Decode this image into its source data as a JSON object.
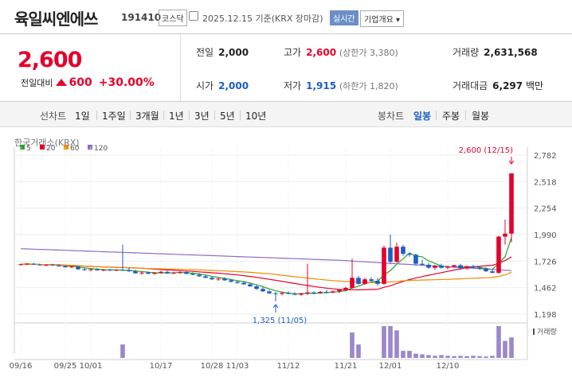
{
  "header": {
    "name": "육일씨엔에쓰",
    "code": "191410",
    "market": "코스닥",
    "date_text": "2025.12.15 기준(KRX 장마감)",
    "realtime": "실시간",
    "company_info": "기업개요 ▾"
  },
  "summary": {
    "price": "2,600",
    "change_label": "전일대비",
    "change_value": "600",
    "change_pct": "+30.00%",
    "prev_label": "전일",
    "prev_value": "2,000",
    "open_label": "시가",
    "open_value": "2,000",
    "high_label": "고가",
    "high_value": "2,600",
    "high_sub": "(상한가 3,380)",
    "low_label": "저가",
    "low_value": "1,915",
    "low_sub": "(하한가 1,820)",
    "volume_label": "거래량",
    "volume_value": "2,631,568",
    "amount_label": "거래대금",
    "amount_value": "6,297",
    "amount_unit": "백만"
  },
  "toolbar": {
    "line_chart": "선차트",
    "periods": [
      "1일",
      "1주일",
      "3개월",
      "1년",
      "3년",
      "5년",
      "10년"
    ],
    "candle": "봉차트",
    "candle_periods": [
      "일봉",
      "주봉",
      "월봉"
    ],
    "selected": "일봉"
  },
  "colors": {
    "up": "#e4002b",
    "down": "#1a5fc6",
    "ma5": "#2ca02c",
    "ma20": "#e4002b",
    "ma60": "#f08c00",
    "ma120": "#8e6bc6",
    "volume": "#9b87c9"
  },
  "chart_data": {
    "type": "candlestick",
    "source": "한국거래소(KRX)",
    "legend": [
      "5",
      "20",
      "60",
      "120"
    ],
    "y_ticks": [
      2782,
      2518,
      2254,
      1990,
      1726,
      1462,
      1198
    ],
    "ylim": [
      1198,
      2782
    ],
    "x_ticks": [
      "09/16",
      "09/25",
      "10/01",
      "10/17",
      "10/28",
      "11/03",
      "11/12",
      "11/21",
      "12/01",
      "12/10"
    ],
    "max_label": "2,600 (12/15)",
    "min_label": "1,325 (11/05)",
    "volume_label": "거래량",
    "candles": [
      [
        1690,
        1700,
        1680,
        1695
      ],
      [
        1695,
        1705,
        1690,
        1700
      ],
      [
        1700,
        1710,
        1688,
        1692
      ],
      [
        1692,
        1700,
        1680,
        1685
      ],
      [
        1685,
        1695,
        1675,
        1690
      ],
      [
        1690,
        1700,
        1680,
        1685
      ],
      [
        1685,
        1695,
        1670,
        1675
      ],
      [
        1675,
        1685,
        1660,
        1665
      ],
      [
        1665,
        1680,
        1655,
        1672
      ],
      [
        1672,
        1680,
        1640,
        1645
      ],
      [
        1645,
        1660,
        1630,
        1638
      ],
      [
        1638,
        1650,
        1625,
        1645
      ],
      [
        1645,
        1655,
        1630,
        1635
      ],
      [
        1635,
        1648,
        1625,
        1640
      ],
      [
        1640,
        1650,
        1628,
        1632
      ],
      [
        1632,
        1645,
        1625,
        1640
      ],
      [
        1640,
        1890,
        1630,
        1635
      ],
      [
        1635,
        1660,
        1620,
        1625
      ],
      [
        1625,
        1640,
        1600,
        1605
      ],
      [
        1605,
        1620,
        1590,
        1612
      ],
      [
        1612,
        1625,
        1595,
        1600
      ],
      [
        1600,
        1615,
        1590,
        1610
      ],
      [
        1610,
        1630,
        1600,
        1620
      ],
      [
        1620,
        1630,
        1598,
        1605
      ],
      [
        1605,
        1620,
        1595,
        1612
      ],
      [
        1612,
        1625,
        1600,
        1618
      ],
      [
        1618,
        1630,
        1595,
        1600
      ],
      [
        1600,
        1615,
        1585,
        1590
      ],
      [
        1590,
        1605,
        1570,
        1575
      ],
      [
        1575,
        1590,
        1555,
        1560
      ],
      [
        1560,
        1575,
        1540,
        1545
      ],
      [
        1545,
        1560,
        1530,
        1552
      ],
      [
        1552,
        1565,
        1530,
        1535
      ],
      [
        1535,
        1550,
        1515,
        1520
      ],
      [
        1520,
        1535,
        1500,
        1510
      ],
      [
        1510,
        1525,
        1490,
        1495
      ],
      [
        1495,
        1510,
        1470,
        1475
      ],
      [
        1475,
        1490,
        1440,
        1450
      ],
      [
        1450,
        1465,
        1420,
        1425
      ],
      [
        1425,
        1440,
        1400,
        1405
      ],
      [
        1405,
        1420,
        1325,
        1400
      ],
      [
        1400,
        1415,
        1385,
        1410
      ],
      [
        1410,
        1425,
        1395,
        1400
      ],
      [
        1400,
        1415,
        1385,
        1392
      ],
      [
        1392,
        1410,
        1380,
        1405
      ],
      [
        1405,
        1700,
        1390,
        1415
      ],
      [
        1415,
        1425,
        1395,
        1410
      ],
      [
        1410,
        1430,
        1400,
        1420
      ],
      [
        1420,
        1440,
        1405,
        1415
      ],
      [
        1415,
        1435,
        1405,
        1425
      ],
      [
        1425,
        1445,
        1410,
        1440
      ],
      [
        1440,
        1470,
        1430,
        1460
      ],
      [
        1460,
        1750,
        1450,
        1560
      ],
      [
        1560,
        1580,
        1490,
        1500
      ],
      [
        1500,
        1560,
        1490,
        1545
      ],
      [
        1545,
        1565,
        1520,
        1530
      ],
      [
        1530,
        1560,
        1480,
        1500
      ],
      [
        1500,
        1880,
        1490,
        1860
      ],
      [
        1860,
        1990,
        1700,
        1720
      ],
      [
        1720,
        1910,
        1710,
        1870
      ],
      [
        1870,
        1890,
        1780,
        1800
      ],
      [
        1800,
        1810,
        1770,
        1790
      ],
      [
        1790,
        1800,
        1680,
        1700
      ],
      [
        1700,
        1740,
        1680,
        1690
      ],
      [
        1690,
        1710,
        1650,
        1660
      ],
      [
        1660,
        1690,
        1640,
        1680
      ],
      [
        1680,
        1700,
        1650,
        1660
      ],
      [
        1660,
        1680,
        1645,
        1670
      ],
      [
        1670,
        1690,
        1660,
        1685
      ],
      [
        1685,
        1700,
        1650,
        1655
      ],
      [
        1655,
        1680,
        1640,
        1675
      ],
      [
        1675,
        1690,
        1655,
        1660
      ],
      [
        1660,
        1680,
        1640,
        1650
      ],
      [
        1650,
        1665,
        1620,
        1625
      ],
      [
        1625,
        1640,
        1605,
        1610
      ],
      [
        1610,
        1980,
        1600,
        1970
      ],
      [
        1970,
        2140,
        1890,
        2000
      ],
      [
        2000,
        2600,
        1915,
        2600
      ]
    ],
    "volumes": [
      0,
      0,
      0,
      0,
      0,
      0,
      0,
      0,
      0,
      0,
      0,
      0,
      0,
      0,
      0,
      0,
      38,
      0,
      0,
      0,
      0,
      0,
      0,
      0,
      0,
      0,
      0,
      0,
      0,
      0,
      0,
      0,
      0,
      0,
      0,
      0,
      0,
      0,
      0,
      0,
      0,
      0,
      0,
      0,
      0,
      0,
      0,
      0,
      0,
      0,
      0,
      0,
      72,
      38,
      0,
      0,
      0,
      90,
      90,
      78,
      20,
      20,
      12,
      10,
      8,
      6,
      8,
      6,
      5,
      6,
      5,
      6,
      5,
      4,
      6,
      90,
      48,
      58
    ]
  }
}
